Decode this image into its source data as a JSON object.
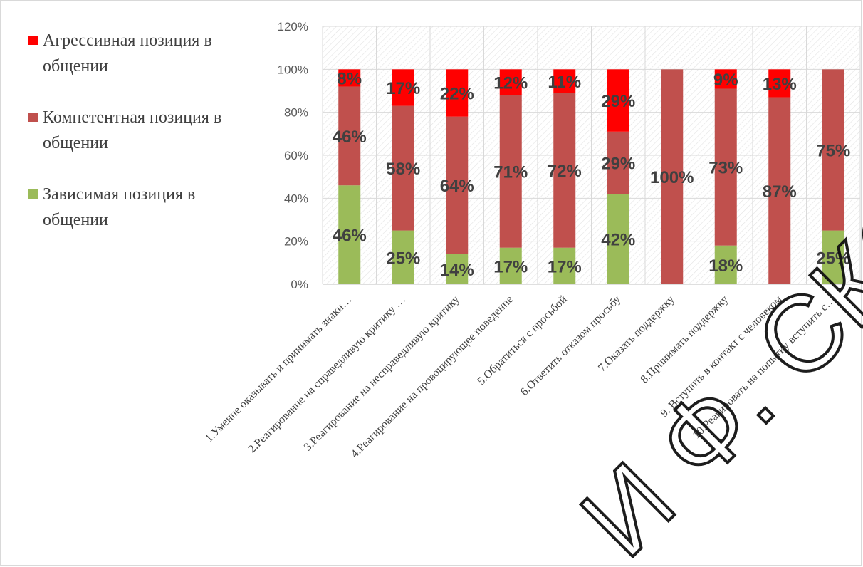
{
  "chart_data": {
    "type": "bar",
    "stacked": true,
    "categories": [
      "1.Умение оказывать и принимать знаки…",
      "2.Реагирование на справедливую критику …",
      "3.Реагирование на несправедливую критику",
      "4.Реагирование на провоцирующее поведение",
      "5.Обратиться с просьбой",
      "6.Ответить отказом просьбу",
      "7.Оказать поддержку",
      "8.Принимать поддержку",
      "9. Вступить в контакт с человеком",
      "10.Реагировать на попытку вступить с…"
    ],
    "series": [
      {
        "name": "Зависимая позиция в общении",
        "color": "#9bbb59",
        "values": [
          46,
          25,
          14,
          17,
          17,
          42,
          0,
          18,
          0,
          25
        ],
        "labels": [
          "46%",
          "25%",
          "14%",
          "17%",
          "17%",
          "42%",
          "",
          "18%",
          "",
          "25%"
        ]
      },
      {
        "name": "Компетентная позиция в общении",
        "color": "#c0504d",
        "values": [
          46,
          58,
          64,
          71,
          72,
          29,
          100,
          73,
          87,
          75
        ],
        "labels": [
          "46%",
          "58%",
          "64%",
          "71%",
          "72%",
          "29%",
          "100%",
          "73%",
          "87%",
          "75%"
        ]
      },
      {
        "name": "Агрессивная позиция в общении",
        "color": "#ff0000",
        "values": [
          8,
          17,
          22,
          12,
          11,
          29,
          0,
          9,
          13,
          0
        ],
        "labels": [
          "8%",
          "17%",
          "22%",
          "12%",
          "11%",
          "29%",
          "",
          "9%",
          "13%",
          ""
        ]
      }
    ],
    "ylim": [
      0,
      120
    ],
    "yticks": [
      "0%",
      "20%",
      "40%",
      "60%",
      "80%",
      "100%",
      "120%"
    ],
    "grid": true,
    "legend": "left"
  },
  "legend": {
    "items": [
      {
        "line1": "Агрессивная позиция в",
        "line2": "общении",
        "color": "#ff0000"
      },
      {
        "line1": "Компетентная позиция в",
        "line2": "общении",
        "color": "#c0504d"
      },
      {
        "line1": "Зависимая позиция в",
        "line2": "общении",
        "color": "#9bbb59"
      }
    ]
  },
  "watermark": {
    "text": "И Ф. СКОРИН"
  }
}
